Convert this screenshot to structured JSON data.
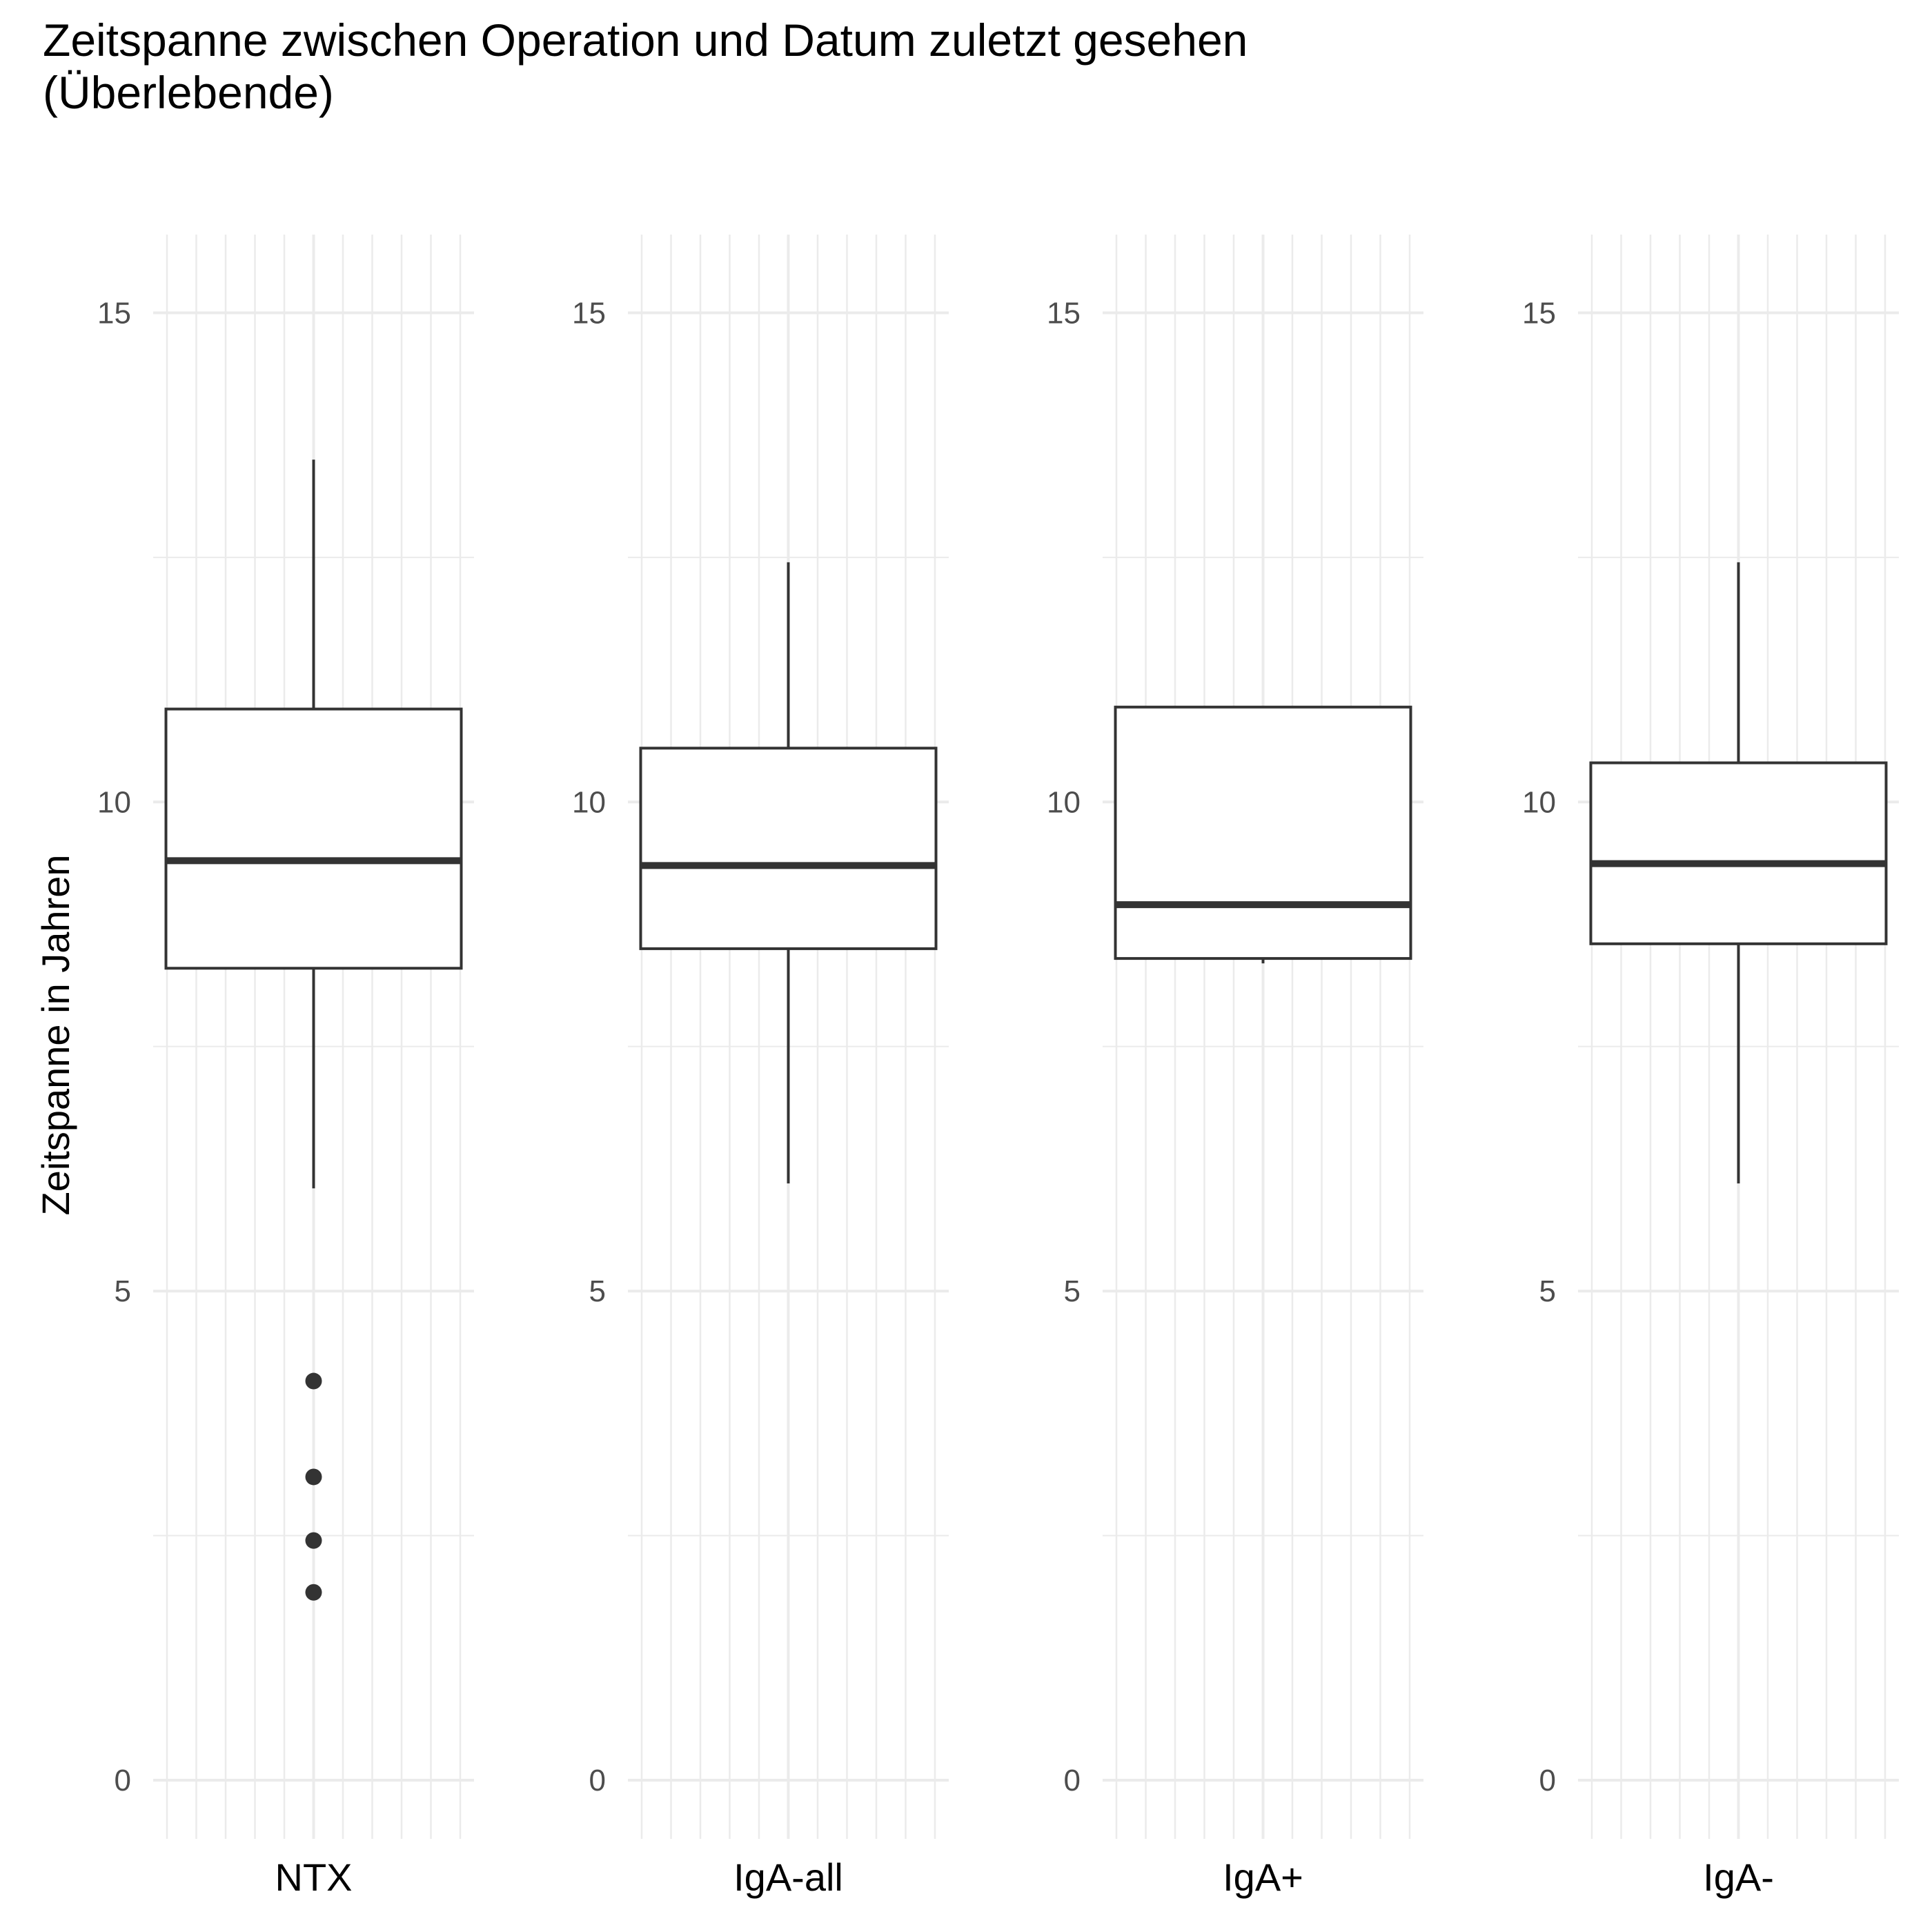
{
  "chart_data": {
    "type": "boxplot",
    "title": "Zeitspanne zwischen Operation und Datum zuletzt gesehen\n(Überlebende)",
    "xlabel": "",
    "ylabel": "Zeitspanne in Jahren",
    "ylim": [
      -0.6,
      15.8
    ],
    "yticks": [
      0,
      5,
      10,
      15
    ],
    "grid": true,
    "facets": [
      {
        "category": "NTX",
        "whisker_low": 6.05,
        "q1": 8.3,
        "median": 9.4,
        "q3": 10.95,
        "whisker_high": 13.5,
        "outliers": [
          4.08,
          3.1,
          2.45,
          1.92
        ]
      },
      {
        "category": "IgA-all",
        "whisker_low": 6.1,
        "q1": 8.5,
        "median": 9.35,
        "q3": 10.55,
        "whisker_high": 12.45,
        "outliers": []
      },
      {
        "category": "IgA+",
        "whisker_low": 8.35,
        "q1": 8.4,
        "median": 8.95,
        "q3": 10.97,
        "whisker_high": 10.97,
        "outliers": []
      },
      {
        "category": "IgA-",
        "whisker_low": 6.1,
        "q1": 8.55,
        "median": 9.37,
        "q3": 10.4,
        "whisker_high": 12.45,
        "outliers": []
      }
    ]
  }
}
